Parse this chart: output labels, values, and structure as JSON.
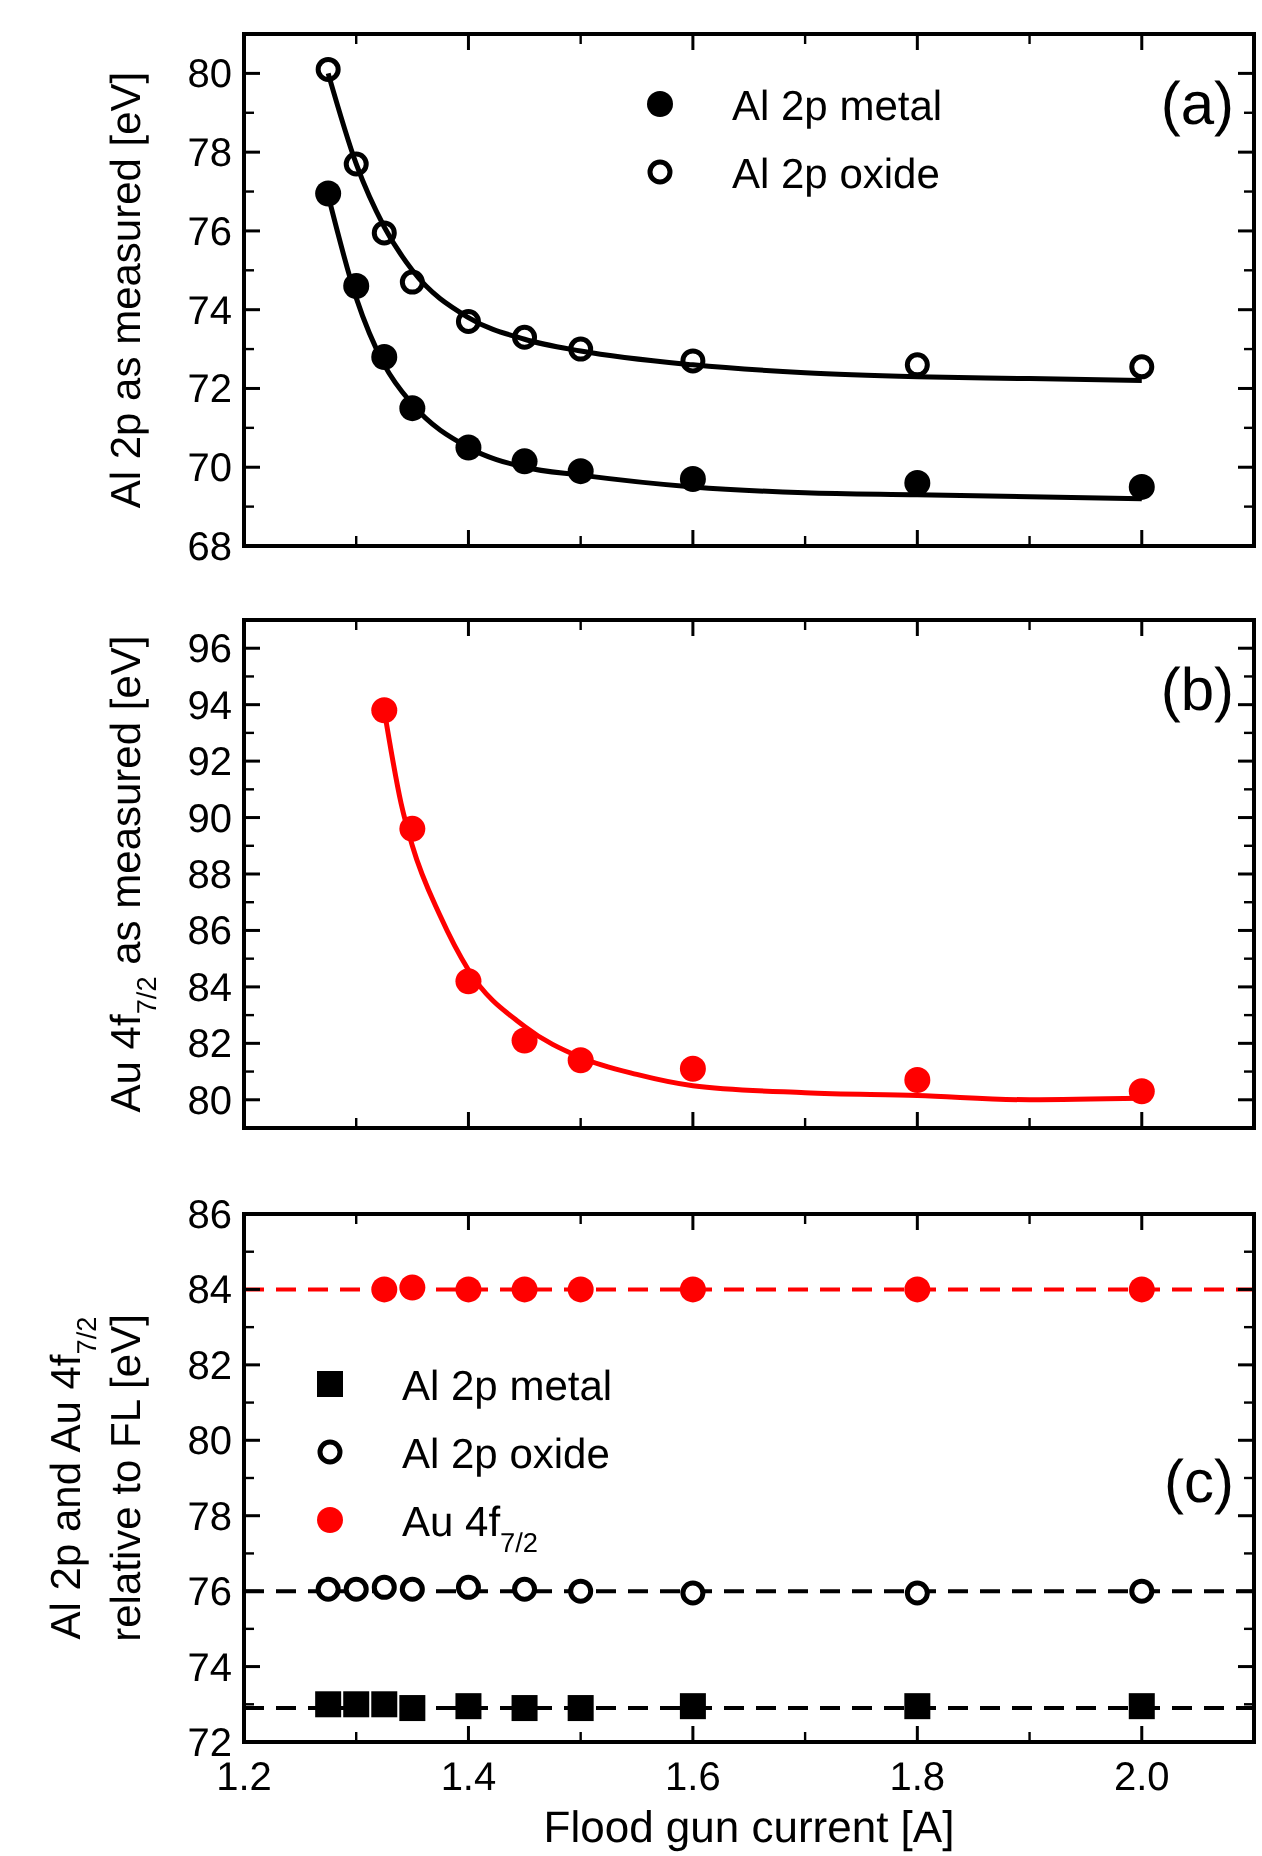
{
  "chart_data": [
    {
      "type": "scatter",
      "ylabel": "Al 2p as measured [eV]",
      "annotations": [
        "(a)"
      ],
      "xlim": [
        1.2,
        2.1
      ],
      "ylim": [
        68,
        81
      ],
      "xticks": [
        {
          "value": 1.2,
          "label": null
        },
        {
          "value": 1.4,
          "label": null
        },
        {
          "value": 1.6,
          "label": null
        },
        {
          "value": 1.8,
          "label": null
        },
        {
          "value": 2,
          "label": null
        }
      ],
      "yticks": [
        68,
        70,
        72,
        74,
        76,
        78,
        80
      ],
      "tick_labels": "y",
      "legend": "top",
      "x": [
        1.275,
        1.3,
        1.325,
        1.35,
        1.4,
        1.45,
        1.5,
        1.6,
        1.8,
        2.0
      ],
      "series": [
        {
          "name": "Al 2p metal",
          "color": "#000000",
          "marker": "circle",
          "values": [
            76.95,
            74.6,
            72.8,
            71.5,
            70.5,
            70.15,
            69.9,
            69.7,
            69.6,
            69.5
          ]
        },
        {
          "name": "Al 2p oxide",
          "color": "#000000",
          "marker": "circle-open",
          "values": [
            80.1,
            77.7,
            75.95,
            74.7,
            73.7,
            73.3,
            73.0,
            72.7,
            72.6,
            72.55
          ]
        },
        {
          "type": "line",
          "color": "#000000",
          "marker": "none",
          "x": [
            1.275,
            1.3,
            1.325,
            1.35,
            1.4,
            1.45,
            1.5,
            1.6,
            1.7,
            1.8,
            1.9,
            2.0
          ],
          "values": [
            76.9,
            74.3,
            72.6,
            71.6,
            70.5,
            70.0,
            69.8,
            69.5,
            69.35,
            69.3,
            69.25,
            69.2
          ]
        },
        {
          "type": "line",
          "color": "#000000",
          "marker": "none",
          "x": [
            1.275,
            1.3,
            1.325,
            1.35,
            1.4,
            1.45,
            1.5,
            1.6,
            1.7,
            1.8,
            1.9,
            2.0
          ],
          "values": [
            80.0,
            77.7,
            76.1,
            75.0,
            73.8,
            73.25,
            72.95,
            72.6,
            72.4,
            72.3,
            72.25,
            72.2
          ]
        }
      ]
    },
    {
      "type": "scatter",
      "ylabel": "Au 4f$_{7/2}$ as measured [eV]",
      "annotations": [
        "(b)"
      ],
      "xlim": [
        1.2,
        2.1
      ],
      "ylim": [
        79,
        97
      ],
      "xticks": [
        {
          "value": 1.2,
          "label": null
        },
        {
          "value": 1.4,
          "label": null
        },
        {
          "value": 1.6,
          "label": null
        },
        {
          "value": 1.8,
          "label": null
        },
        {
          "value": 2,
          "label": null
        }
      ],
      "yticks": [
        80,
        82,
        84,
        86,
        88,
        90,
        92,
        94,
        96
      ],
      "tick_labels": "y",
      "series": [
        {
          "color": "#ff0000",
          "marker": "circle",
          "x": [
            1.325,
            1.35,
            1.4,
            1.45,
            1.5,
            1.6,
            1.8,
            2.0
          ],
          "values": [
            93.8,
            89.6,
            84.2,
            82.1,
            81.4,
            81.1,
            80.7,
            80.3
          ]
        },
        {
          "type": "line",
          "color": "#ff0000",
          "marker": "none",
          "x": [
            1.325,
            1.34,
            1.35,
            1.375,
            1.4,
            1.45,
            1.5,
            1.55,
            1.6,
            1.7,
            1.8,
            1.9,
            2.0
          ],
          "values": [
            93.8,
            90.5,
            89.0,
            86.5,
            84.6,
            82.6,
            81.5,
            80.9,
            80.5,
            80.25,
            80.15,
            80.0,
            80.05
          ]
        }
      ]
    },
    {
      "type": "scatter",
      "ylabel": "Al 2p and Au 4f$_{7/2}$\nrelative to FL [eV]",
      "xlabel": "Flood gun current [A]",
      "annotations": [
        "(c)"
      ],
      "xlim": [
        1.2,
        2.1
      ],
      "ylim": [
        72,
        86
      ],
      "xticks": [
        1.2,
        1.4,
        1.6,
        1.8,
        {
          "value": 2,
          "label": "2.0"
        }
      ],
      "yticks": [
        72,
        74,
        76,
        78,
        80,
        82,
        84,
        86
      ],
      "legend": "left",
      "series": [
        {
          "name": "Al 2p metal",
          "color": "#000000",
          "marker": "square",
          "x": [
            1.275,
            1.3,
            1.325,
            1.35,
            1.4,
            1.45,
            1.5,
            1.6,
            1.8,
            2.0
          ],
          "values": [
            73.0,
            73.0,
            73.0,
            72.9,
            72.95,
            72.9,
            72.9,
            72.95,
            72.95,
            72.95
          ]
        },
        {
          "name": "Al 2p oxide",
          "color": "#000000",
          "marker": "circle-open",
          "x": [
            1.275,
            1.3,
            1.325,
            1.35,
            1.4,
            1.45,
            1.5,
            1.6,
            1.8,
            2.0
          ],
          "values": [
            76.05,
            76.05,
            76.1,
            76.05,
            76.1,
            76.05,
            76.0,
            75.95,
            75.95,
            76.0
          ]
        },
        {
          "name": "Au 4f$_{7/2}$",
          "color": "#ff0000",
          "marker": "circle",
          "x": [
            1.325,
            1.35,
            1.4,
            1.45,
            1.5,
            1.6,
            1.8,
            2.0
          ],
          "values": [
            84.0,
            84.05,
            84.0,
            84.0,
            84.0,
            84.0,
            84.0,
            84.0
          ]
        }
      ],
      "ref_lines": [
        {
          "axis": "y",
          "value": 84.0,
          "color": "#ff0000",
          "line_style": "dashed"
        },
        {
          "axis": "y",
          "value": 76.0,
          "color": "#000000",
          "line_style": "dashed"
        },
        {
          "axis": "y",
          "value": 72.9,
          "color": "#000000",
          "line_style": "dashed"
        }
      ]
    }
  ]
}
